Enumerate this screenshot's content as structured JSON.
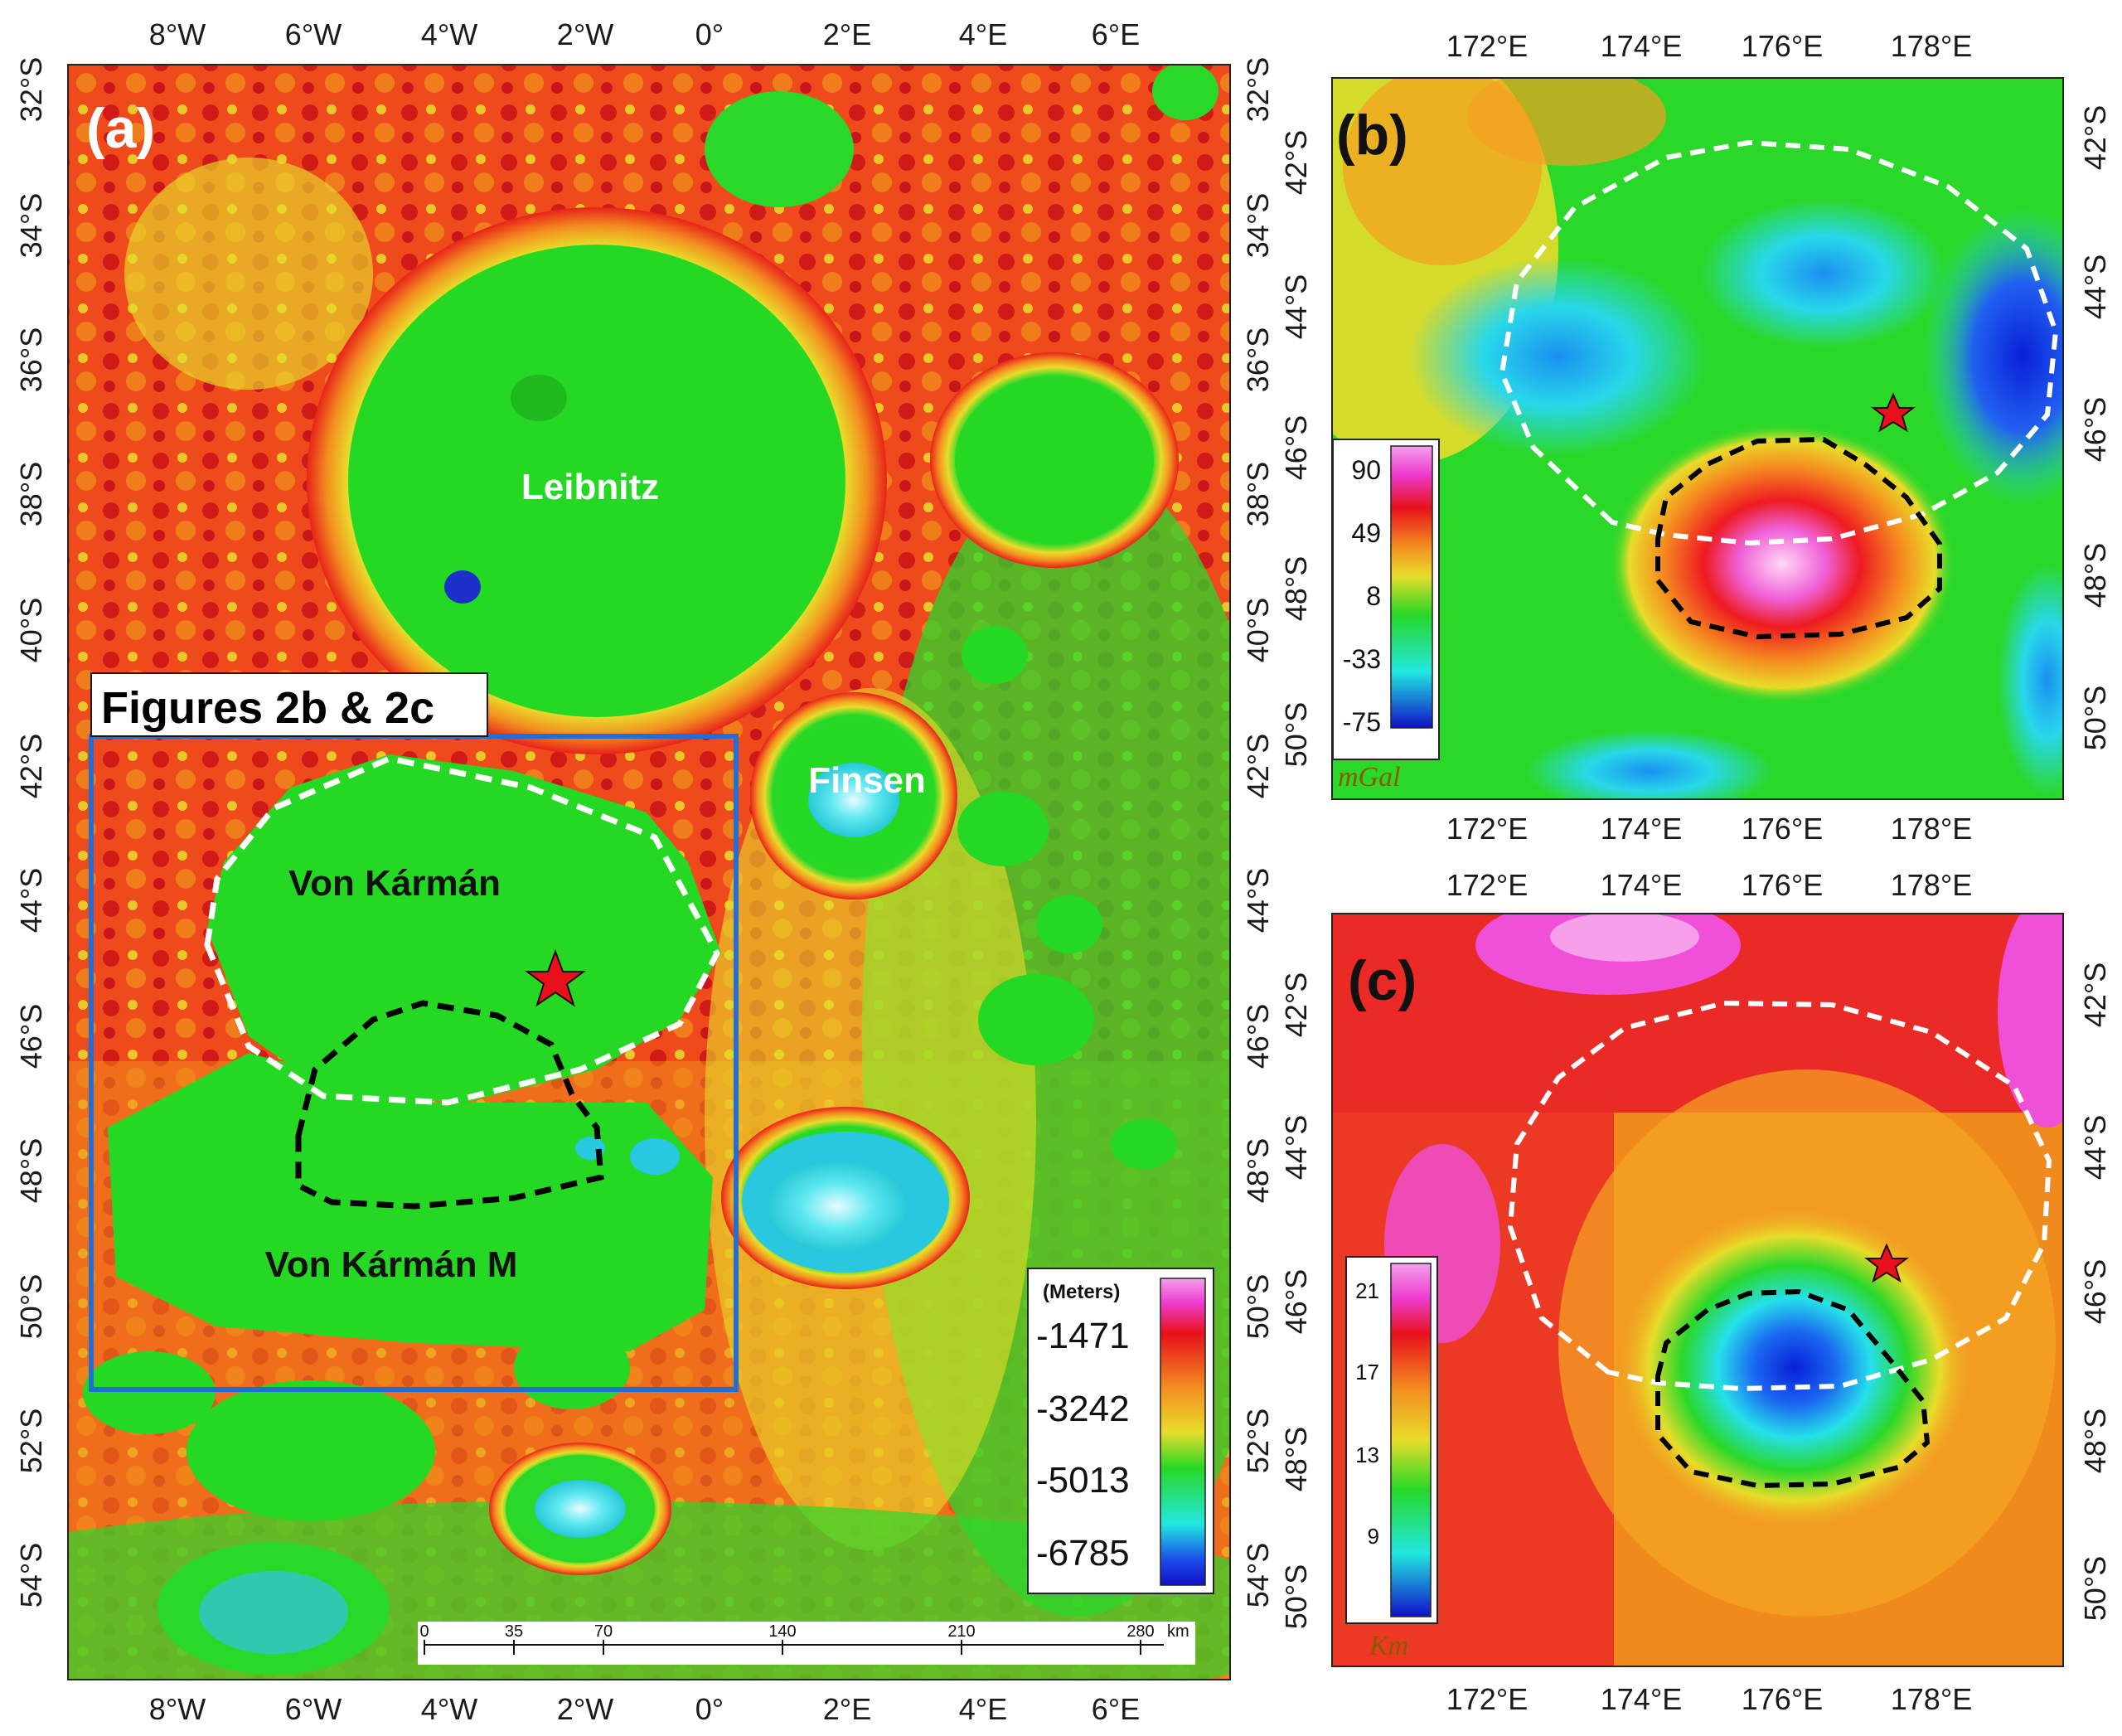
{
  "panels": {
    "a": {
      "letter": "(a)",
      "lon_ticks": [
        "8°W",
        "6°W",
        "4°W",
        "2°W",
        "0°",
        "2°E",
        "4°E",
        "6°E"
      ],
      "lat_ticks": [
        "32°S",
        "34°S",
        "36°S",
        "38°S",
        "40°S",
        "42°S",
        "44°S",
        "46°S",
        "48°S",
        "50°S",
        "52°S",
        "54°S"
      ],
      "craters": {
        "leibnitz": "Leibnitz",
        "finsen": "Finsen",
        "von_karman": "Von Kármán",
        "von_karman_m": "Von Kármán M"
      },
      "inset_label": "Figures 2b & 2c",
      "legend": {
        "title": "(Meters)",
        "values": [
          "-1471",
          "-3242",
          "-5013",
          "-6785"
        ]
      },
      "scale_bar": {
        "labels": [
          "0",
          "35",
          "70",
          "140",
          "210",
          "280"
        ],
        "unit": "km"
      }
    },
    "b": {
      "letter": "(b)",
      "lon_ticks": [
        "172°E",
        "174°E",
        "176°E",
        "178°E"
      ],
      "lat_ticks": [
        "42°S",
        "44°S",
        "46°S",
        "48°S",
        "50°S"
      ],
      "legend": {
        "values": [
          "90",
          "49",
          "8",
          "-33",
          "-75"
        ],
        "unit": "mGal"
      }
    },
    "c": {
      "letter": "(c)",
      "lon_ticks": [
        "172°E",
        "174°E",
        "176°E",
        "178°E"
      ],
      "lat_ticks": [
        "42°S",
        "44°S",
        "46°S",
        "48°S",
        "50°S"
      ],
      "legend": {
        "values": [
          "21",
          "17",
          "13",
          "9"
        ],
        "unit": "Km"
      }
    }
  },
  "colors": {
    "basin_green": "#1fd81f",
    "rim_red": "#e8231a",
    "rim_orange": "#f08a1c",
    "highland_yellow": "#e6d22a",
    "low_cyan": "#33e6e6",
    "deep_blue": "#1030e0",
    "peak_magenta": "#f040d0",
    "inset_box": "#1f6fd6",
    "star": "#e8101a"
  }
}
